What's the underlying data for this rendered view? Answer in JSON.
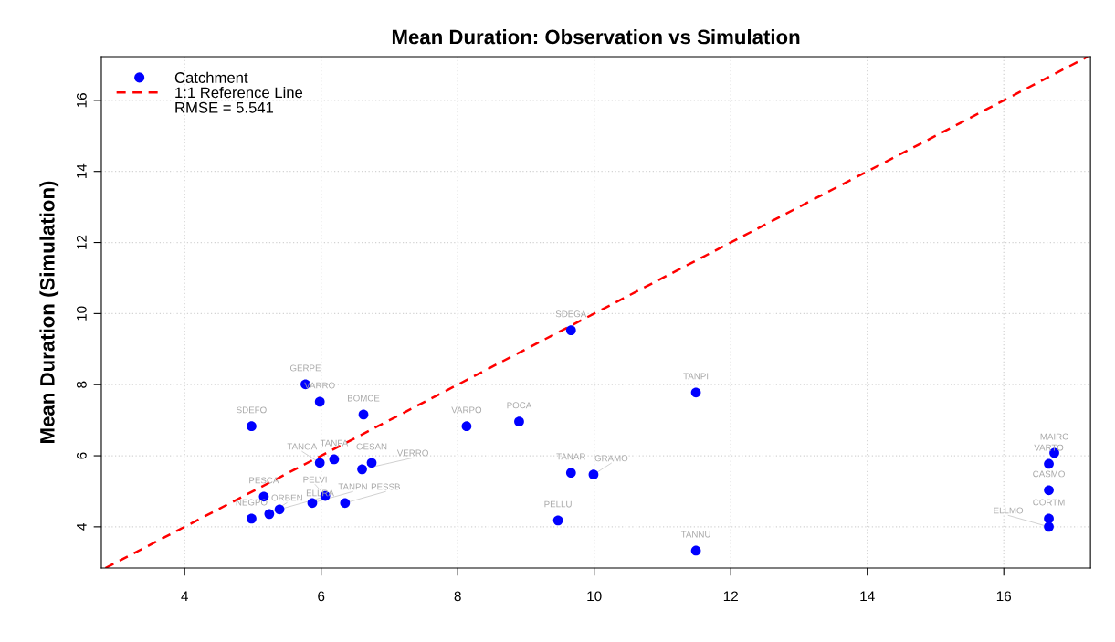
{
  "chart_data": {
    "type": "scatter",
    "title": "Mean Duration: Observation vs Simulation",
    "ylabel": "Mean Duration (Simulation)",
    "xlim": [
      2.78,
      17.27
    ],
    "ylim": [
      2.84,
      17.23
    ],
    "xticks": [
      4,
      6,
      8,
      10,
      12,
      14,
      16
    ],
    "yticks": [
      4,
      6,
      8,
      10,
      12,
      14,
      16
    ],
    "grid": true,
    "legend": "top left",
    "marker": "circle",
    "series": [
      {
        "name": "Catchment",
        "color": "#0000ff",
        "x": [
          5.77,
          5.98,
          4.98,
          6.62,
          6.19,
          5.98,
          6.74,
          6.6,
          5.16,
          4.98,
          5.24,
          5.39,
          5.87,
          6.06,
          6.35,
          9.66,
          8.9,
          8.13,
          9.66,
          9.99,
          9.47,
          11.49,
          11.49,
          16.74,
          16.66,
          16.66,
          16.66,
          16.66
        ],
        "values": [
          8.01,
          7.52,
          6.83,
          7.16,
          5.9,
          5.8,
          5.8,
          5.62,
          4.85,
          4.23,
          4.36,
          4.49,
          4.67,
          4.87,
          4.67,
          9.53,
          6.96,
          6.83,
          5.52,
          5.47,
          4.18,
          7.78,
          3.33,
          6.08,
          5.77,
          5.03,
          4.23,
          4.0
        ]
      },
      {
        "name": "1:1 Reference Line",
        "type": "line",
        "color": "#ff0000",
        "line_style": "dashed",
        "marker": "none",
        "x": [
          2.84,
          17.23
        ],
        "values": [
          2.84,
          17.23
        ]
      }
    ],
    "annotations": [
      "RMSE = 5.541",
      {
        "text": "GERPE",
        "x": 5.77,
        "y": 8.01
      },
      {
        "text": "VARRO",
        "x": 5.98,
        "y": 7.52
      },
      {
        "text": "SDEFO",
        "x": 4.98,
        "y": 6.83
      },
      {
        "text": "BOMCE",
        "x": 6.62,
        "y": 7.16
      },
      {
        "text": "TANFA",
        "x": 6.19,
        "y": 5.9
      },
      {
        "text": "TANGA",
        "x": 5.98,
        "y": 5.8
      },
      {
        "text": "GESAN",
        "x": 6.74,
        "y": 5.8
      },
      {
        "text": "VERRO",
        "x": 6.6,
        "y": 5.62
      },
      {
        "text": "PESCA",
        "x": 5.16,
        "y": 4.85
      },
      {
        "text": "NEGPO",
        "x": 4.98,
        "y": 4.23
      },
      {
        "text": "ORBEN",
        "x": 5.24,
        "y": 4.36
      },
      {
        "text": "ELLRA",
        "x": 5.39,
        "y": 4.49
      },
      {
        "text": "TANPN",
        "x": 5.87,
        "y": 4.67
      },
      {
        "text": "PELVI",
        "x": 6.06,
        "y": 4.87
      },
      {
        "text": "PESSB",
        "x": 6.35,
        "y": 4.67
      },
      {
        "text": "SDEGA",
        "x": 9.66,
        "y": 9.53
      },
      {
        "text": "POCA",
        "x": 8.9,
        "y": 6.96
      },
      {
        "text": "VARPO",
        "x": 8.13,
        "y": 6.83
      },
      {
        "text": "TANAR",
        "x": 9.66,
        "y": 5.52
      },
      {
        "text": "GRAMO",
        "x": 9.99,
        "y": 5.47
      },
      {
        "text": "PELLU",
        "x": 9.47,
        "y": 4.18
      },
      {
        "text": "TANPI",
        "x": 11.49,
        "y": 7.78
      },
      {
        "text": "TANNU",
        "x": 11.49,
        "y": 3.33
      },
      {
        "text": "MAIRC",
        "x": 16.74,
        "y": 6.08
      },
      {
        "text": "VARTO",
        "x": 16.66,
        "y": 5.77
      },
      {
        "text": "CASMO",
        "x": 16.66,
        "y": 5.03
      },
      {
        "text": "CORTM",
        "x": 16.66,
        "y": 4.23
      },
      {
        "text": "ELLMO",
        "x": 16.66,
        "y": 4.0
      }
    ]
  }
}
